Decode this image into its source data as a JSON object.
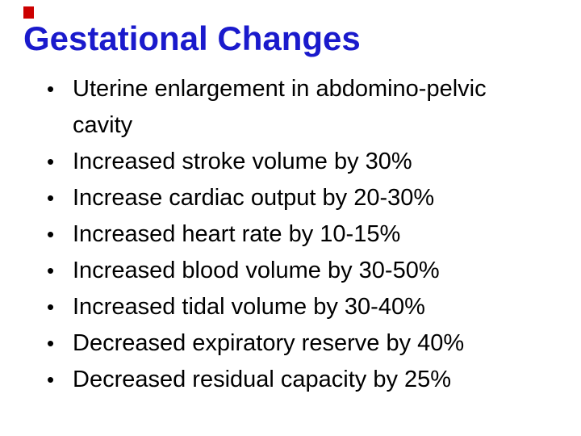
{
  "slide": {
    "title": "Gestational Changes",
    "title_color": "#1a1acc",
    "corner_mark_color": "#cc0000",
    "bullet_char": "•",
    "bullets": [
      "Uterine enlargement in abdomino-pelvic cavity",
      "Increased stroke volume by 30%",
      "Increase cardiac output by 20-30%",
      "Increased heart rate by 10-15%",
      "Increased blood volume by 30-50%",
      "Increased tidal volume by 30-40%",
      "Decreased expiratory reserve by 40%",
      "Decreased residual capacity by 25%"
    ]
  }
}
